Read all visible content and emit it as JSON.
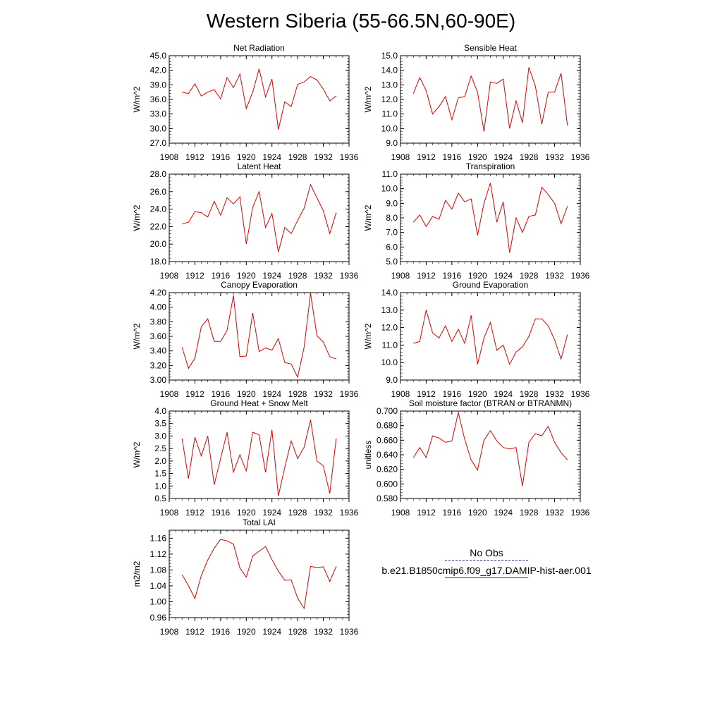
{
  "title": "Western Siberia (55-66.5N,60-90E)",
  "colors": {
    "model": "#e00000",
    "obs": "#3030a0"
  },
  "legend": {
    "obs_label": "No Obs",
    "model_label": "b.e21.B1850cmip6.f09_g17.DAMIP-hist-aer.001"
  },
  "chart_data": [
    {
      "type": "line",
      "title": "Net Radiation",
      "ylabel": "W/m^2",
      "xlim": [
        1908,
        1936
      ],
      "xticks": [
        "1908",
        "1912",
        "1916",
        "1920",
        "1924",
        "1928",
        "1932",
        "1936"
      ],
      "ylim": [
        27.0,
        45.0
      ],
      "yticks": [
        "27.0",
        "30.0",
        "33.0",
        "36.0",
        "39.0",
        "42.0",
        "45.0"
      ],
      "x": [
        1910,
        1911,
        1912,
        1913,
        1914,
        1915,
        1916,
        1917,
        1918,
        1919,
        1920,
        1921,
        1922,
        1923,
        1924,
        1925,
        1926,
        1927,
        1928,
        1929,
        1930,
        1931,
        1932,
        1933,
        1934
      ],
      "series": [
        {
          "values": [
            37.5,
            37.2,
            39.2,
            36.7,
            37.5,
            38.0,
            36.1,
            40.5,
            38.4,
            41.2,
            34.1,
            37.5,
            42.3,
            36.5,
            40.2,
            29.8,
            35.5,
            34.5,
            39.1,
            39.6,
            40.7,
            40.0,
            38.1,
            35.7,
            36.7
          ]
        }
      ]
    },
    {
      "type": "line",
      "title": "Sensible Heat",
      "ylabel": "W/m^2",
      "xlim": [
        1908,
        1936
      ],
      "xticks": [
        "1908",
        "1912",
        "1916",
        "1920",
        "1924",
        "1928",
        "1932",
        "1936"
      ],
      "ylim": [
        9.0,
        15.0
      ],
      "yticks": [
        "9.0",
        "10.0",
        "11.0",
        "12.0",
        "13.0",
        "14.0",
        "15.0"
      ],
      "x": [
        1910,
        1911,
        1912,
        1913,
        1914,
        1915,
        1916,
        1917,
        1918,
        1919,
        1920,
        1921,
        1922,
        1923,
        1924,
        1925,
        1926,
        1927,
        1928,
        1929,
        1930,
        1931,
        1932,
        1933,
        1934
      ],
      "series": [
        {
          "values": [
            12.4,
            13.5,
            12.6,
            11.0,
            11.5,
            12.2,
            10.6,
            12.1,
            12.2,
            13.6,
            12.5,
            9.8,
            13.2,
            13.1,
            13.4,
            10.0,
            11.9,
            10.4,
            14.2,
            12.9,
            10.3,
            12.5,
            12.5,
            13.8,
            10.2
          ]
        }
      ]
    },
    {
      "type": "line",
      "title": "Latent Heat",
      "ylabel": "W/m^2",
      "xlim": [
        1908,
        1936
      ],
      "xticks": [
        "1908",
        "1912",
        "1916",
        "1920",
        "1924",
        "1928",
        "1932",
        "1936"
      ],
      "ylim": [
        18.0,
        28.0
      ],
      "yticks": [
        "18.0",
        "20.0",
        "22.0",
        "24.0",
        "26.0",
        "28.0"
      ],
      "x": [
        1910,
        1911,
        1912,
        1913,
        1914,
        1915,
        1916,
        1917,
        1918,
        1919,
        1920,
        1921,
        1922,
        1923,
        1924,
        1925,
        1926,
        1927,
        1928,
        1929,
        1930,
        1931,
        1932,
        1933,
        1934
      ],
      "series": [
        {
          "values": [
            22.3,
            22.5,
            23.7,
            23.6,
            23.1,
            24.9,
            23.3,
            25.3,
            24.6,
            25.4,
            20.0,
            24.2,
            26.0,
            21.9,
            23.5,
            19.1,
            21.9,
            21.2,
            22.7,
            24.1,
            26.8,
            25.3,
            23.8,
            21.2,
            23.6
          ]
        }
      ]
    },
    {
      "type": "line",
      "title": "Transpiration",
      "ylabel": "W/m^2",
      "xlim": [
        1908,
        1936
      ],
      "xticks": [
        "1908",
        "1912",
        "1916",
        "1920",
        "1924",
        "1928",
        "1932",
        "1936"
      ],
      "ylim": [
        5.0,
        11.0
      ],
      "yticks": [
        "5.0",
        "6.0",
        "7.0",
        "8.0",
        "9.0",
        "10.0",
        "11.0"
      ],
      "x": [
        1910,
        1911,
        1912,
        1913,
        1914,
        1915,
        1916,
        1917,
        1918,
        1919,
        1920,
        1921,
        1922,
        1923,
        1924,
        1925,
        1926,
        1927,
        1928,
        1929,
        1930,
        1931,
        1932,
        1933,
        1934
      ],
      "series": [
        {
          "values": [
            7.7,
            8.2,
            7.4,
            8.1,
            7.9,
            9.2,
            8.6,
            9.7,
            9.1,
            9.3,
            6.8,
            9.0,
            10.4,
            7.7,
            9.1,
            5.6,
            8.0,
            7.0,
            8.1,
            8.2,
            10.1,
            9.6,
            9.0,
            7.6,
            8.8
          ]
        }
      ]
    },
    {
      "type": "line",
      "title": "Canopy Evaporation",
      "ylabel": "W/m^2",
      "xlim": [
        1908,
        1936
      ],
      "xticks": [
        "1908",
        "1912",
        "1916",
        "1920",
        "1924",
        "1928",
        "1932",
        "1936"
      ],
      "ylim": [
        3.0,
        4.2
      ],
      "yticks": [
        "3.00",
        "3.20",
        "3.40",
        "3.60",
        "3.80",
        "4.00",
        "4.20"
      ],
      "x": [
        1910,
        1911,
        1912,
        1913,
        1914,
        1915,
        1916,
        1917,
        1918,
        1919,
        1920,
        1921,
        1922,
        1923,
        1924,
        1925,
        1926,
        1927,
        1928,
        1929,
        1930,
        1931,
        1932,
        1933,
        1934
      ],
      "series": [
        {
          "values": [
            3.45,
            3.16,
            3.3,
            3.73,
            3.84,
            3.53,
            3.53,
            3.68,
            4.16,
            3.32,
            3.33,
            3.92,
            3.39,
            3.44,
            3.41,
            3.57,
            3.24,
            3.22,
            3.04,
            3.45,
            4.19,
            3.61,
            3.52,
            3.32,
            3.29
          ]
        }
      ]
    },
    {
      "type": "line",
      "title": "Ground Evaporation",
      "ylabel": "W/m^2",
      "xlim": [
        1908,
        1936
      ],
      "xticks": [
        "1908",
        "1912",
        "1916",
        "1920",
        "1924",
        "1928",
        "1932",
        "1936"
      ],
      "ylim": [
        9.0,
        14.0
      ],
      "yticks": [
        "9.0",
        "10.0",
        "11.0",
        "12.0",
        "13.0",
        "14.0"
      ],
      "x": [
        1910,
        1911,
        1912,
        1913,
        1914,
        1915,
        1916,
        1917,
        1918,
        1919,
        1920,
        1921,
        1922,
        1923,
        1924,
        1925,
        1926,
        1927,
        1928,
        1929,
        1930,
        1931,
        1932,
        1933,
        1934
      ],
      "series": [
        {
          "values": [
            11.1,
            11.2,
            13.0,
            11.7,
            11.4,
            12.1,
            11.2,
            11.9,
            11.1,
            12.7,
            9.9,
            11.4,
            12.3,
            10.7,
            11.0,
            9.9,
            10.6,
            10.9,
            11.5,
            12.5,
            12.5,
            12.1,
            11.3,
            10.2,
            11.6
          ]
        }
      ]
    },
    {
      "type": "line",
      "title": "Ground Heat + Snow Melt",
      "ylabel": "W/m^2",
      "xlim": [
        1908,
        1936
      ],
      "xticks": [
        "1908",
        "1912",
        "1916",
        "1920",
        "1924",
        "1928",
        "1932",
        "1936"
      ],
      "ylim": [
        0.5,
        4.0
      ],
      "yticks": [
        "0.5",
        "1.0",
        "1.5",
        "2.0",
        "2.5",
        "3.0",
        "3.5",
        "4.0"
      ],
      "x": [
        1910,
        1911,
        1912,
        1913,
        1914,
        1915,
        1916,
        1917,
        1918,
        1919,
        1920,
        1921,
        1922,
        1923,
        1924,
        1925,
        1926,
        1927,
        1928,
        1929,
        1930,
        1931,
        1932,
        1933,
        1934
      ],
      "series": [
        {
          "values": [
            2.9,
            1.3,
            2.95,
            2.2,
            3.0,
            1.05,
            2.1,
            3.15,
            1.55,
            2.25,
            1.6,
            3.15,
            3.05,
            1.55,
            3.25,
            0.6,
            1.75,
            2.8,
            2.1,
            2.55,
            3.65,
            2.0,
            1.8,
            0.7,
            2.9
          ]
        }
      ]
    },
    {
      "type": "line",
      "title": "Soil moisture factor (BTRAN or BTRANMN)",
      "ylabel": "unitless",
      "xlim": [
        1908,
        1936
      ],
      "xticks": [
        "1908",
        "1912",
        "1916",
        "1920",
        "1924",
        "1928",
        "1932",
        "1936"
      ],
      "ylim": [
        0.58,
        0.7
      ],
      "yticks": [
        "0.580",
        "0.600",
        "0.620",
        "0.640",
        "0.660",
        "0.680",
        "0.700"
      ],
      "x": [
        1910,
        1911,
        1912,
        1913,
        1914,
        1915,
        1916,
        1917,
        1918,
        1919,
        1920,
        1921,
        1922,
        1923,
        1924,
        1925,
        1926,
        1927,
        1928,
        1929,
        1930,
        1931,
        1932,
        1933,
        1934
      ],
      "series": [
        {
          "values": [
            0.636,
            0.65,
            0.636,
            0.666,
            0.663,
            0.657,
            0.659,
            0.698,
            0.661,
            0.633,
            0.619,
            0.66,
            0.673,
            0.659,
            0.65,
            0.648,
            0.65,
            0.597,
            0.657,
            0.669,
            0.666,
            0.679,
            0.657,
            0.643,
            0.633
          ]
        }
      ]
    },
    {
      "type": "line",
      "title": "Total LAI",
      "ylabel": "m2/m2",
      "xlim": [
        1908,
        1936
      ],
      "xticks": [
        "1908",
        "1912",
        "1916",
        "1920",
        "1924",
        "1928",
        "1932",
        "1936"
      ],
      "ylim": [
        0.96,
        1.18
      ],
      "yticks": [
        "0.96",
        "1.00",
        "1.04",
        "1.08",
        "1.12",
        "1.16"
      ],
      "x": [
        1910,
        1911,
        1912,
        1913,
        1914,
        1915,
        1916,
        1917,
        1918,
        1919,
        1920,
        1921,
        1922,
        1923,
        1924,
        1925,
        1926,
        1927,
        1928,
        1929,
        1930,
        1931,
        1932,
        1933,
        1934
      ],
      "series": [
        {
          "values": [
            1.068,
            1.04,
            1.008,
            1.066,
            1.105,
            1.135,
            1.157,
            1.153,
            1.145,
            1.085,
            1.062,
            1.115,
            1.127,
            1.139,
            1.106,
            1.077,
            1.054,
            1.055,
            1.009,
            0.983,
            1.089,
            1.086,
            1.088,
            1.051,
            1.089
          ]
        }
      ]
    }
  ]
}
